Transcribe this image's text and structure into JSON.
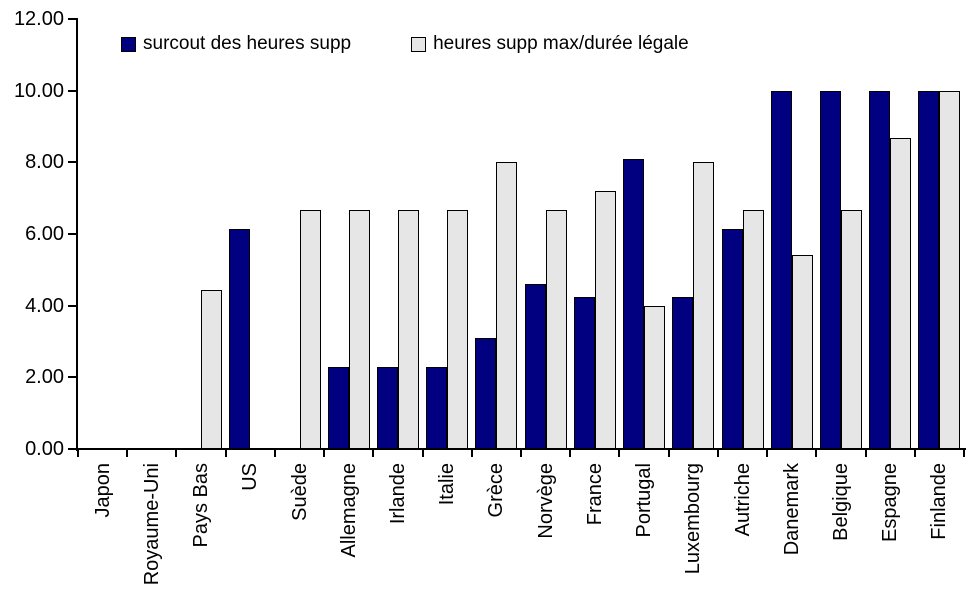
{
  "chart_data": {
    "type": "bar",
    "title": "",
    "xlabel": "",
    "ylabel": "",
    "categories": [
      "Japon",
      "Royaume-Uni",
      "Pays Bas",
      "US",
      "Suède",
      "Allemagne",
      "Irlande",
      "Italie",
      "Grèce",
      "Norvège",
      "France",
      "Portugal",
      "Luxembourg",
      "Autriche",
      "Danemark",
      "Belgique",
      "Espagne",
      "Finlande"
    ],
    "series": [
      {
        "name": "surcout des heures supp",
        "color": "#000080",
        "values": [
          0,
          0,
          0,
          6.15,
          0,
          2.3,
          2.3,
          2.3,
          3.1,
          4.6,
          4.25,
          8.1,
          4.25,
          6.15,
          10,
          10,
          10,
          10
        ]
      },
      {
        "name": "heures supp max/durée légale",
        "color": "#e6e6e6",
        "values": [
          0,
          0,
          4.45,
          0,
          6.67,
          6.67,
          6.67,
          6.67,
          8,
          6.67,
          7.2,
          4,
          8,
          6.67,
          5.4,
          6.67,
          8.67,
          10
        ]
      }
    ],
    "ylim": [
      0,
      12
    ],
    "yticks": [
      0,
      2,
      4,
      6,
      8,
      10,
      12
    ],
    "ytick_labels": [
      "0.00",
      "2.00",
      "4.00",
      "6.00",
      "8.00",
      "10.00",
      "12.00"
    ],
    "grid": false,
    "legend_position": "top",
    "background": "#ffffff"
  }
}
